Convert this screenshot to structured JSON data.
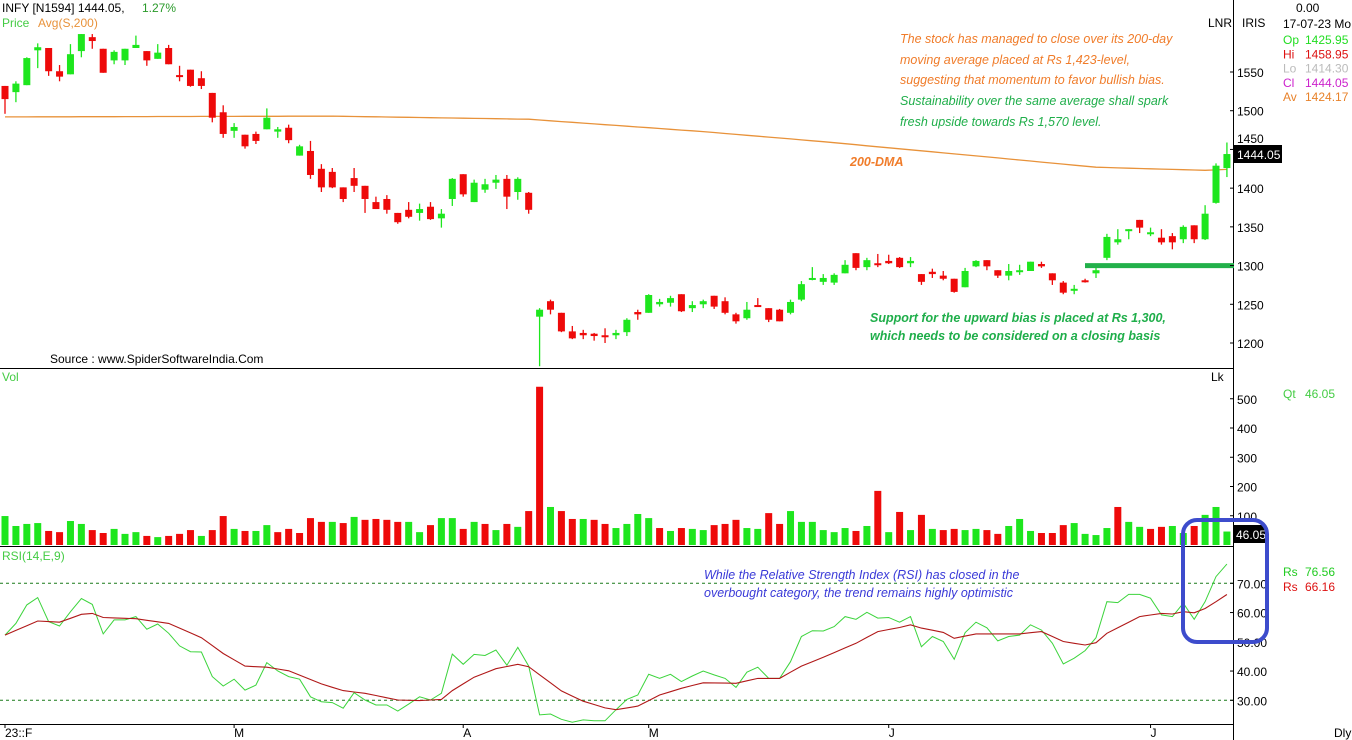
{
  "header": {
    "symbol": "INFY [N1594] 1444.05,",
    "change": "1.27%",
    "price_label": "Price",
    "avg_label": "Avg(S,200)"
  },
  "info": {
    "top_value": "0.00",
    "date": "17-07-23 Mo",
    "lnr": "LNR",
    "iris": "IRIS",
    "rows": [
      {
        "label": "Op",
        "value": "1425.95",
        "color": "#22dd22"
      },
      {
        "label": "Hi",
        "value": "1458.95",
        "color": "#dd1111"
      },
      {
        "label": "Lo",
        "value": "1414.30",
        "color": "#bbbbbb"
      },
      {
        "label": "Cl",
        "value": "1444.05",
        "color": "#cc22cc"
      },
      {
        "label": "Av",
        "value": "1424.17",
        "color": "#e8822a"
      }
    ],
    "last_price_box": "1444.05",
    "vol_label": "Vol",
    "vol_unit": "Lk",
    "qt_label": "Qt",
    "qt_value": "46.05",
    "last_vol_box": "46.05",
    "rsi_label": "RSI(14,E,9)",
    "rsi_rows": [
      {
        "label": "Rs",
        "value": "76.56",
        "color": "#22cc22"
      },
      {
        "label": "Rs",
        "value": "66.16",
        "color": "#dd1111"
      }
    ],
    "period": "Dly"
  },
  "annotations": {
    "main_orange": [
      "The stock has managed to close over its 200-day",
      "moving average placed at Rs 1,423-level,",
      "suggesting that momentum to favor bullish bias."
    ],
    "main_green": [
      "Sustainability over the same average shall spark",
      "fresh upside towards Rs 1,570 level."
    ],
    "dma_label": "200-DMA",
    "support": [
      "Support for the upward bias is placed at Rs 1,300,",
      "which needs to be considered on a closing basis"
    ],
    "rsi_note": [
      "While the Relative Strength Index (RSI) has closed in the",
      "overbought category, the trend remains highly optimistic"
    ],
    "source": "Source : www.SpiderSoftwareIndia.Com"
  },
  "colors": {
    "up": "#1ee61e",
    "down": "#ee0a0a",
    "dma": "#e8923a",
    "rsi": "#3cd43c",
    "signal": "#b01818",
    "support": "#22b04a",
    "highlight": "#3d4ccc"
  },
  "chart_data": {
    "type": "candlestick",
    "title": "INFY daily",
    "x_tick_labels": [
      {
        "label": "23::F",
        "index": 0
      },
      {
        "label": "M",
        "index": 21
      },
      {
        "label": "A",
        "index": 42
      },
      {
        "label": "M",
        "index": 59
      },
      {
        "label": "J",
        "index": 81
      },
      {
        "label": "J",
        "index": 105
      }
    ],
    "price_axis": {
      "ticks": [
        1550,
        1500,
        1450,
        1400,
        1350,
        1300,
        1250,
        1200
      ]
    },
    "ohlc": [
      [
        1532,
        1532,
        1496,
        1515
      ],
      [
        1524,
        1538,
        1511,
        1535
      ],
      [
        1533,
        1569,
        1533,
        1568
      ],
      [
        1578,
        1587,
        1555,
        1582
      ],
      [
        1581,
        1581,
        1545,
        1551
      ],
      [
        1551,
        1559,
        1538,
        1544
      ],
      [
        1547,
        1586,
        1547,
        1573
      ],
      [
        1577,
        1599,
        1569,
        1599
      ],
      [
        1595,
        1599,
        1580,
        1590
      ],
      [
        1580,
        1580,
        1549,
        1549
      ],
      [
        1565,
        1578,
        1560,
        1576
      ],
      [
        1565,
        1580,
        1559,
        1580
      ],
      [
        1581,
        1597,
        1581,
        1585
      ],
      [
        1577,
        1577,
        1558,
        1565
      ],
      [
        1567,
        1586,
        1567,
        1575
      ],
      [
        1581,
        1585,
        1560,
        1560
      ],
      [
        1546,
        1558,
        1538,
        1544
      ],
      [
        1553,
        1553,
        1531,
        1532
      ],
      [
        1542,
        1551,
        1528,
        1532
      ],
      [
        1523,
        1523,
        1485,
        1491
      ],
      [
        1498,
        1507,
        1465,
        1470
      ],
      [
        1474,
        1484,
        1465,
        1479
      ],
      [
        1469,
        1469,
        1451,
        1454
      ],
      [
        1470,
        1473,
        1457,
        1461
      ],
      [
        1476,
        1503,
        1476,
        1491
      ],
      [
        1473,
        1479,
        1465,
        1476
      ],
      [
        1478,
        1482,
        1458,
        1462
      ],
      [
        1442,
        1456,
        1442,
        1454
      ],
      [
        1448,
        1461,
        1412,
        1417
      ],
      [
        1425,
        1431,
        1395,
        1401
      ],
      [
        1421,
        1426,
        1400,
        1401
      ],
      [
        1401,
        1401,
        1382,
        1386
      ],
      [
        1413,
        1426,
        1395,
        1403
      ],
      [
        1403,
        1403,
        1368,
        1386
      ],
      [
        1382,
        1389,
        1373,
        1373
      ],
      [
        1386,
        1391,
        1367,
        1372
      ],
      [
        1368,
        1368,
        1354,
        1356
      ],
      [
        1372,
        1382,
        1361,
        1363
      ],
      [
        1368,
        1380,
        1358,
        1373
      ],
      [
        1376,
        1382,
        1359,
        1360
      ],
      [
        1361,
        1373,
        1349,
        1367
      ],
      [
        1386,
        1413,
        1377,
        1412
      ],
      [
        1418,
        1418,
        1389,
        1392
      ],
      [
        1382,
        1411,
        1382,
        1407
      ],
      [
        1398,
        1412,
        1394,
        1405
      ],
      [
        1407,
        1417,
        1399,
        1411
      ],
      [
        1412,
        1417,
        1373,
        1389
      ],
      [
        1395,
        1414,
        1385,
        1412
      ],
      [
        1394,
        1395,
        1367,
        1372
      ],
      [
        1234,
        1245,
        1170,
        1243
      ],
      [
        1254,
        1256,
        1237,
        1243
      ],
      [
        1239,
        1239,
        1214,
        1215
      ],
      [
        1215,
        1222,
        1205,
        1206
      ],
      [
        1213,
        1217,
        1205,
        1210
      ],
      [
        1212,
        1213,
        1203,
        1209
      ],
      [
        1210,
        1219,
        1200,
        1208
      ],
      [
        1210,
        1217,
        1205,
        1213
      ],
      [
        1214,
        1232,
        1209,
        1230
      ],
      [
        1240,
        1243,
        1230,
        1237
      ],
      [
        1239,
        1263,
        1239,
        1262
      ],
      [
        1250,
        1257,
        1247,
        1253
      ],
      [
        1252,
        1261,
        1247,
        1258
      ],
      [
        1263,
        1263,
        1240,
        1241
      ],
      [
        1245,
        1254,
        1240,
        1249
      ],
      [
        1250,
        1256,
        1245,
        1254
      ],
      [
        1261,
        1261,
        1244,
        1247
      ],
      [
        1254,
        1259,
        1237,
        1239
      ],
      [
        1237,
        1239,
        1225,
        1228
      ],
      [
        1232,
        1253,
        1230,
        1243
      ],
      [
        1249,
        1258,
        1247,
        1247
      ],
      [
        1245,
        1245,
        1227,
        1230
      ],
      [
        1243,
        1244,
        1228,
        1228
      ],
      [
        1239,
        1256,
        1237,
        1253
      ],
      [
        1256,
        1280,
        1254,
        1276
      ],
      [
        1283,
        1298,
        1281,
        1284
      ],
      [
        1279,
        1289,
        1275,
        1284
      ],
      [
        1278,
        1290,
        1275,
        1288
      ],
      [
        1290,
        1307,
        1290,
        1301
      ],
      [
        1316,
        1316,
        1294,
        1297
      ],
      [
        1298,
        1310,
        1294,
        1307
      ],
      [
        1303,
        1315,
        1298,
        1301
      ],
      [
        1306,
        1314,
        1302,
        1303
      ],
      [
        1310,
        1311,
        1297,
        1298
      ],
      [
        1303,
        1311,
        1298,
        1306
      ],
      [
        1289,
        1289,
        1275,
        1279
      ],
      [
        1292,
        1296,
        1284,
        1289
      ],
      [
        1287,
        1293,
        1281,
        1283
      ],
      [
        1283,
        1283,
        1265,
        1266
      ],
      [
        1272,
        1297,
        1272,
        1293
      ],
      [
        1299,
        1307,
        1298,
        1306
      ],
      [
        1307,
        1307,
        1294,
        1299
      ],
      [
        1294,
        1294,
        1284,
        1287
      ],
      [
        1287,
        1302,
        1281,
        1293
      ],
      [
        1293,
        1301,
        1288,
        1294
      ],
      [
        1293,
        1305,
        1293,
        1305
      ],
      [
        1302,
        1305,
        1297,
        1299
      ],
      [
        1290,
        1290,
        1275,
        1281
      ],
      [
        1278,
        1280,
        1263,
        1265
      ],
      [
        1268,
        1275,
        1263,
        1270
      ],
      [
        1281,
        1283,
        1278,
        1279
      ],
      [
        1290,
        1297,
        1284,
        1294
      ],
      [
        1310,
        1341,
        1307,
        1337
      ],
      [
        1330,
        1347,
        1327,
        1334
      ],
      [
        1346,
        1347,
        1334,
        1347
      ],
      [
        1359,
        1359,
        1342,
        1349
      ],
      [
        1342,
        1349,
        1338,
        1343
      ],
      [
        1336,
        1347,
        1327,
        1330
      ],
      [
        1338,
        1342,
        1321,
        1330
      ],
      [
        1334,
        1352,
        1329,
        1350
      ],
      [
        1352,
        1352,
        1329,
        1334
      ],
      [
        1334,
        1378,
        1333,
        1367
      ],
      [
        1381,
        1432,
        1380,
        1429
      ],
      [
        1425.95,
        1458.95,
        1414.3,
        1444.05
      ]
    ],
    "sma200": {
      "name": "200-DMA",
      "knots": [
        [
          0,
          1492
        ],
        [
          30,
          1493
        ],
        [
          48,
          1489
        ],
        [
          64,
          1473
        ],
        [
          75,
          1460
        ],
        [
          91,
          1439
        ],
        [
          100,
          1427
        ],
        [
          110,
          1423
        ],
        [
          112,
          1424.17
        ]
      ]
    },
    "support_level": 1300,
    "volume_axis": {
      "unit": "Lk",
      "ticks": [
        500,
        400,
        300,
        200,
        100
      ]
    },
    "volume": [
      99,
      65,
      72,
      75,
      48,
      44,
      82,
      72,
      51,
      41,
      55,
      38,
      44,
      31,
      27,
      31,
      38,
      51,
      31,
      51,
      99,
      55,
      48,
      48,
      68,
      44,
      55,
      41,
      92,
      79,
      79,
      75,
      96,
      86,
      89,
      86,
      79,
      79,
      44,
      68,
      92,
      92,
      55,
      79,
      72,
      51,
      72,
      62,
      116,
      541,
      130,
      116,
      89,
      89,
      86,
      72,
      58,
      72,
      106,
      92,
      58,
      48,
      58,
      55,
      51,
      68,
      72,
      86,
      58,
      55,
      109,
      72,
      116,
      79,
      79,
      51,
      44,
      58,
      48,
      65,
      185,
      44,
      113,
      51,
      103,
      55,
      51,
      55,
      51,
      55,
      51,
      38,
      65,
      89,
      48,
      41,
      41,
      68,
      75,
      38,
      34,
      58,
      130,
      79,
      62,
      55,
      62,
      65,
      41,
      65,
      103,
      130,
      46.05
    ],
    "rsi_axis": {
      "ticks": [
        "70.00",
        "60.00",
        "50.00",
        "40.00",
        "30.00"
      ],
      "values": [
        70,
        60,
        50,
        40,
        30
      ],
      "levels": [
        70,
        30
      ]
    },
    "rsi": [
      52.3,
      56.3,
      62.6,
      65.1,
      56.9,
      55.4,
      60.3,
      64.8,
      62.8,
      52.7,
      57.5,
      57.5,
      58.6,
      54.3,
      56.1,
      52.9,
      48.6,
      46.6,
      46.5,
      38.1,
      34.9,
      37.2,
      33.5,
      35.2,
      42.9,
      40.0,
      38.1,
      37.2,
      31.2,
      29.5,
      29.2,
      27.3,
      32.6,
      30.1,
      28.4,
      28.4,
      26.3,
      28.7,
      31.2,
      30.1,
      32.4,
      45.8,
      42.3,
      45.7,
      45.3,
      47.2,
      42.0,
      48.1,
      41.7,
      25.0,
      25.3,
      23.5,
      22.5,
      23.3,
      23.0,
      23.0,
      26.8,
      30.3,
      31.8,
      38.9,
      37.5,
      38.9,
      36.4,
      38.3,
      40.0,
      38.7,
      37.5,
      34.4,
      39.6,
      41.3,
      37.5,
      37.5,
      43.2,
      51.8,
      53.8,
      53.7,
      55.2,
      58.6,
      57.7,
      60.1,
      58.1,
      58.3,
      56.7,
      58.6,
      48.3,
      51.8,
      50.1,
      44.0,
      53.1,
      56.7,
      54.8,
      50.3,
      51.8,
      52.3,
      55.8,
      54.0,
      49.5,
      42.4,
      44.4,
      47.0,
      51.4,
      63.7,
      63.4,
      66.2,
      66.2,
      64.9,
      59.2,
      58.6,
      63.2,
      57.7,
      63.7,
      72.3,
      76.56
    ],
    "rsi_signal_knots": [
      [
        0,
        52.3
      ],
      [
        3,
        57.1
      ],
      [
        5,
        56.7
      ],
      [
        7,
        59.4
      ],
      [
        8,
        59.7
      ],
      [
        9,
        58.3
      ],
      [
        12,
        57.9
      ],
      [
        15,
        56.3
      ],
      [
        18,
        51.4
      ],
      [
        20,
        46.0
      ],
      [
        22,
        41.7
      ],
      [
        24,
        41.3
      ],
      [
        26,
        40.1
      ],
      [
        29,
        35.6
      ],
      [
        31,
        33.3
      ],
      [
        33,
        32.4
      ],
      [
        36,
        30.1
      ],
      [
        38,
        29.9
      ],
      [
        40,
        30.3
      ],
      [
        41,
        33.3
      ],
      [
        43,
        37.9
      ],
      [
        45,
        40.8
      ],
      [
        47,
        42.3
      ],
      [
        48,
        41.5
      ],
      [
        51,
        33.2
      ],
      [
        53,
        29.7
      ],
      [
        55,
        27.4
      ],
      [
        56,
        26.8
      ],
      [
        58,
        28.0
      ],
      [
        60,
        31.8
      ],
      [
        62,
        34.1
      ],
      [
        64,
        36.0
      ],
      [
        67,
        35.8
      ],
      [
        69,
        37.5
      ],
      [
        71,
        37.5
      ],
      [
        73,
        41.7
      ],
      [
        75,
        44.7
      ],
      [
        78,
        49.5
      ],
      [
        80,
        53.5
      ],
      [
        82,
        54.9
      ],
      [
        83,
        55.8
      ],
      [
        84,
        54.7
      ],
      [
        86,
        53.2
      ],
      [
        87,
        51.2
      ],
      [
        89,
        52.7
      ],
      [
        91,
        52.7
      ],
      [
        93,
        52.7
      ],
      [
        95,
        53.5
      ],
      [
        97,
        50.1
      ],
      [
        99,
        48.9
      ],
      [
        100,
        49.7
      ],
      [
        101,
        52.9
      ],
      [
        104,
        58.6
      ],
      [
        106,
        59.7
      ],
      [
        107,
        59.5
      ],
      [
        108,
        60.3
      ],
      [
        109,
        59.9
      ],
      [
        110,
        61.4
      ],
      [
        111,
        63.7
      ],
      [
        112,
        66.16
      ]
    ]
  }
}
